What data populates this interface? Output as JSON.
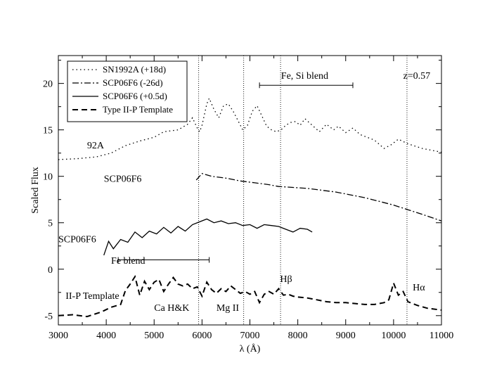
{
  "chart_data": {
    "type": "line",
    "title": "",
    "xlabel": "λ (Å)",
    "ylabel": "Scaled Flux",
    "xlim": [
      3000,
      11000
    ],
    "ylim": [
      -6,
      23
    ],
    "x_ticks": [
      3000,
      4000,
      5000,
      6000,
      7000,
      8000,
      9000,
      10000,
      11000
    ],
    "y_ticks": [
      -5,
      0,
      5,
      10,
      15,
      20
    ],
    "grid": false,
    "legend_position": "top-left",
    "vertical_lines": [
      5930,
      6870,
      7640,
      10280
    ],
    "series": [
      {
        "name": "SN1992A (+18d)",
        "style": "dotted",
        "x": [
          3000,
          3400,
          3800,
          4100,
          4400,
          4700,
          5000,
          5200,
          5500,
          5700,
          5800,
          5900,
          5950,
          6000,
          6100,
          6150,
          6250,
          6350,
          6450,
          6550,
          6650,
          6750,
          6850,
          6950,
          7050,
          7150,
          7250,
          7350,
          7450,
          7550,
          7650,
          7750,
          7850,
          7950,
          8050,
          8150,
          8300,
          8450,
          8600,
          8750,
          8850,
          9000,
          9150,
          9300,
          9450,
          9600,
          9800,
          9950,
          10100,
          10300,
          10600,
          11000
        ],
        "values": [
          11.8,
          11.9,
          12.1,
          12.5,
          13.3,
          13.8,
          14.2,
          14.8,
          15.0,
          15.6,
          16.3,
          15.2,
          14.8,
          15.5,
          17.8,
          18.4,
          17.2,
          16.3,
          17.6,
          17.8,
          17.0,
          16.0,
          15.0,
          15.5,
          17.0,
          17.6,
          16.5,
          15.4,
          15.0,
          14.8,
          15.0,
          15.5,
          15.8,
          15.9,
          15.5,
          16.2,
          15.5,
          14.8,
          15.6,
          15.0,
          15.4,
          14.7,
          15.2,
          14.5,
          14.2,
          13.9,
          13.0,
          13.4,
          14.0,
          13.5,
          13.0,
          12.6
        ]
      },
      {
        "name": "SCP06F6 (-26d)",
        "style": "dash-dot",
        "x": [
          5880,
          6000,
          6200,
          6500,
          6800,
          7100,
          7400,
          7600,
          7900,
          8200,
          8500,
          8800,
          9100,
          9400,
          9700,
          10000,
          10300,
          10600,
          11000
        ],
        "values": [
          9.6,
          10.3,
          10.0,
          9.8,
          9.5,
          9.3,
          9.1,
          8.9,
          8.8,
          8.7,
          8.5,
          8.3,
          8.0,
          7.7,
          7.3,
          6.9,
          6.4,
          5.9,
          5.2
        ]
      },
      {
        "name": "SCP06F6 (+0.5d)",
        "style": "solid",
        "x": [
          3950,
          4050,
          4150,
          4300,
          4450,
          4600,
          4750,
          4900,
          5050,
          5200,
          5350,
          5500,
          5650,
          5800,
          5950,
          6100,
          6250,
          6400,
          6550,
          6700,
          6850,
          7000,
          7150,
          7300,
          7450,
          7600,
          7750,
          7900,
          8050,
          8200,
          8300
        ],
        "values": [
          1.5,
          3.0,
          2.2,
          3.2,
          2.9,
          4.0,
          3.4,
          4.1,
          3.8,
          4.5,
          3.9,
          4.6,
          4.1,
          4.8,
          5.1,
          5.4,
          5.0,
          5.2,
          4.9,
          5.0,
          4.7,
          4.8,
          4.4,
          4.8,
          4.7,
          4.6,
          4.3,
          4.0,
          4.4,
          4.3,
          4.0
        ]
      },
      {
        "name": "Type II-P Template",
        "style": "dashed",
        "x": [
          3000,
          3300,
          3600,
          3900,
          4100,
          4300,
          4400,
          4500,
          4600,
          4700,
          4800,
          4900,
          5000,
          5100,
          5200,
          5300,
          5400,
          5500,
          5600,
          5700,
          5800,
          5900,
          6000,
          6100,
          6200,
          6300,
          6400,
          6500,
          6600,
          6700,
          6800,
          6900,
          7000,
          7100,
          7200,
          7300,
          7400,
          7500,
          7600,
          7700,
          7800,
          7900,
          8000,
          8200,
          8400,
          8600,
          8800,
          9000,
          9200,
          9400,
          9600,
          9800,
          9900,
          10000,
          10100,
          10200,
          10300,
          10500,
          10700,
          11000
        ],
        "values": [
          -5.0,
          -4.9,
          -5.1,
          -4.6,
          -4.1,
          -3.8,
          -2.3,
          -1.6,
          -0.8,
          -2.8,
          -1.3,
          -2.2,
          -1.4,
          -1.1,
          -2.4,
          -1.6,
          -0.9,
          -1.6,
          -1.8,
          -1.6,
          -2.1,
          -1.9,
          -2.9,
          -1.4,
          -2.2,
          -2.6,
          -2.1,
          -2.4,
          -1.8,
          -2.2,
          -2.6,
          -2.4,
          -2.7,
          -2.4,
          -3.6,
          -2.7,
          -2.4,
          -2.7,
          -2.1,
          -2.8,
          -2.7,
          -2.9,
          -3.0,
          -3.1,
          -3.3,
          -3.5,
          -3.6,
          -3.6,
          -3.7,
          -3.8,
          -3.8,
          -3.6,
          -3.3,
          -1.5,
          -2.8,
          -2.4,
          -3.5,
          -3.9,
          -4.2,
          -4.4
        ]
      }
    ],
    "annotations": [
      {
        "text": "92A",
        "x": 3600,
        "y": 13.0
      },
      {
        "text": "SCP06F6",
        "x": 3950,
        "y": 9.4
      },
      {
        "text": "SCP06F6",
        "x": 3000,
        "y": 2.9
      },
      {
        "text": "Fe blend",
        "x": 4100,
        "y": 0.6
      },
      {
        "text": "II-P Template",
        "x": 3150,
        "y": -3.2
      },
      {
        "text": "Ca H&K",
        "x": 5000,
        "y": -4.5
      },
      {
        "text": "Mg II",
        "x": 6300,
        "y": -4.5
      },
      {
        "text": "Hβ",
        "x": 7630,
        "y": -1.4
      },
      {
        "text": "Hα",
        "x": 10400,
        "y": -2.3
      },
      {
        "text": "Fe, Si blend",
        "x": 7650,
        "y": 20.5
      },
      {
        "text": "z=0.57",
        "x": 10200,
        "y": 20.5
      }
    ],
    "ranges": [
      {
        "label": "Fe blend",
        "x1": 4250,
        "x2": 6150,
        "y": 1.0
      },
      {
        "label": "Fe, Si blend",
        "x1": 7200,
        "x2": 9150,
        "y": 19.8
      }
    ]
  }
}
